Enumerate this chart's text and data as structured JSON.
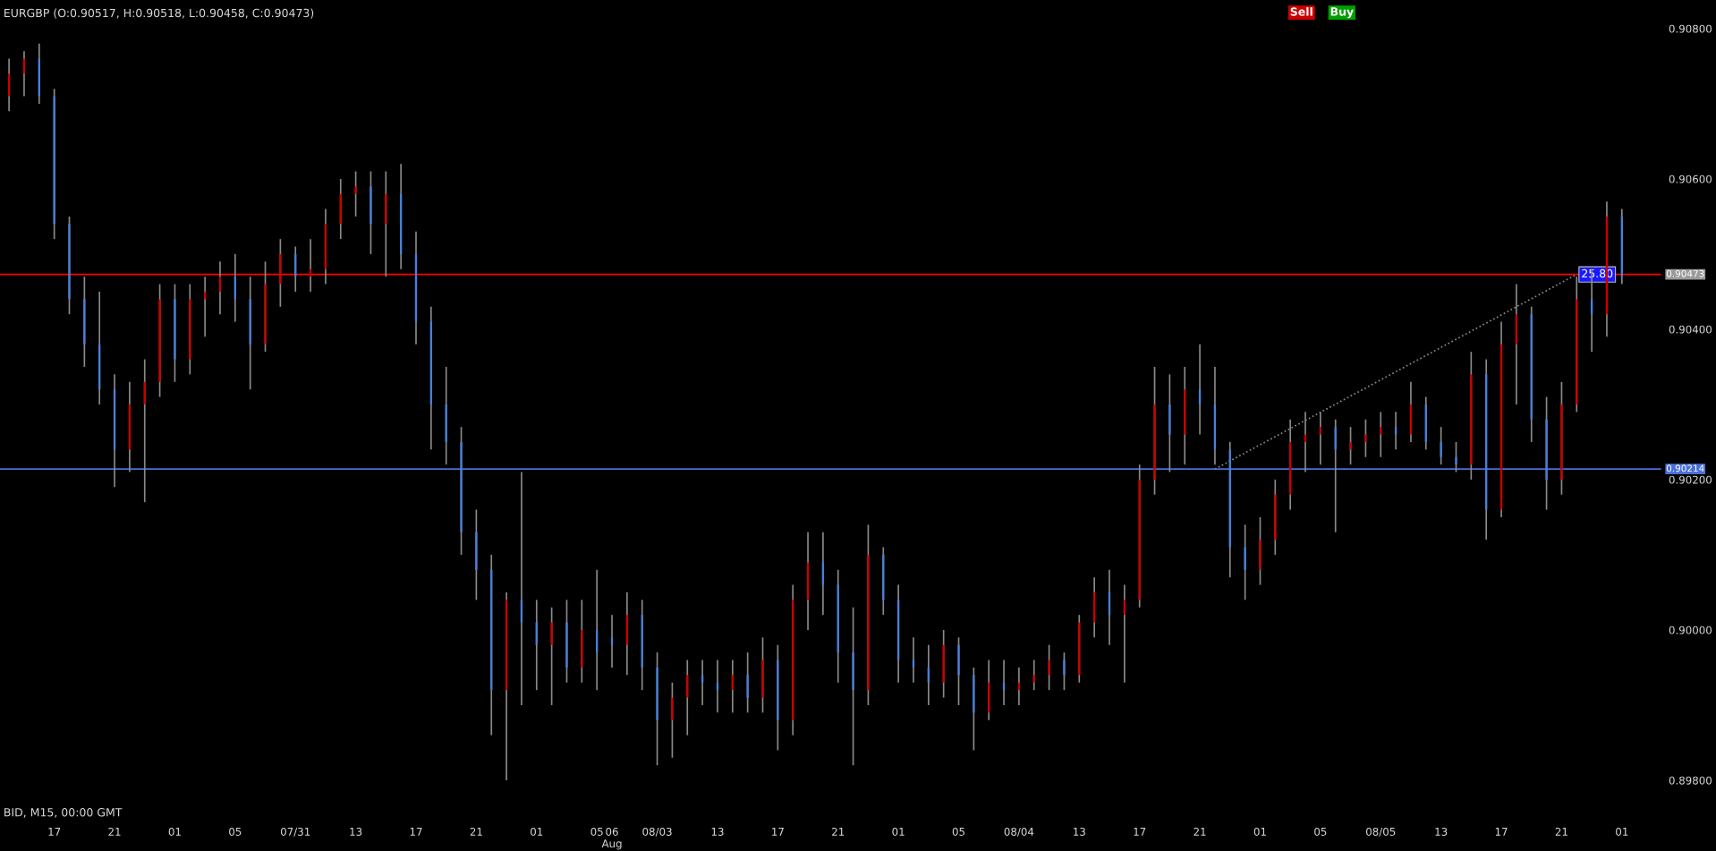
{
  "chart_data": {
    "type": "candlestick",
    "title": "EURGBP (O:0.90517, H:0.90518, L:0.90458, C:0.90473)",
    "categories": [
      null,
      null,
      null,
      "17",
      null,
      null,
      null,
      "21",
      null,
      null,
      null,
      "01",
      null,
      null,
      null,
      "05",
      null,
      null,
      null,
      "07/31",
      null,
      null,
      null,
      "13",
      null,
      null,
      null,
      "17",
      null,
      null,
      null,
      "21",
      null,
      null,
      null,
      "01",
      null,
      null,
      null,
      "05",
      "06\nAug",
      null,
      null,
      "08/03",
      null,
      null,
      null,
      "13",
      null,
      null,
      null,
      "17",
      null,
      null,
      null,
      "21",
      null,
      null,
      null,
      "01",
      null,
      null,
      null,
      "05",
      null,
      null,
      null,
      "08/04",
      null,
      null,
      null,
      "13",
      null,
      null,
      null,
      "17",
      null,
      null,
      null,
      "21",
      null,
      null,
      null,
      "01",
      null,
      null,
      null,
      "05",
      null,
      null,
      null,
      "08/05",
      null,
      null,
      null,
      "13",
      null,
      null,
      null,
      "17",
      null,
      null,
      null,
      "21",
      null,
      null,
      null,
      "01"
    ],
    "ohlc": [
      [
        0.9071,
        0.9076,
        0.9069,
        0.9074
      ],
      [
        0.9074,
        0.9077,
        0.9071,
        0.9076
      ],
      [
        0.9076,
        0.9078,
        0.907,
        0.9071
      ],
      [
        0.9071,
        0.9072,
        0.9052,
        0.9054
      ],
      [
        0.9054,
        0.9055,
        0.9042,
        0.9044
      ],
      [
        0.9044,
        0.9047,
        0.9035,
        0.9038
      ],
      [
        0.9038,
        0.9045,
        0.903,
        0.9032
      ],
      [
        0.9032,
        0.9034,
        0.9019,
        0.9024
      ],
      [
        0.9024,
        0.9033,
        0.9021,
        0.903
      ],
      [
        0.903,
        0.9036,
        0.9017,
        0.9033
      ],
      [
        0.9033,
        0.9046,
        0.9031,
        0.9044
      ],
      [
        0.9044,
        0.9046,
        0.9033,
        0.9036
      ],
      [
        0.9036,
        0.9046,
        0.9034,
        0.9044
      ],
      [
        0.9044,
        0.9047,
        0.9039,
        0.9045
      ],
      [
        0.9045,
        0.9049,
        0.9042,
        0.9047
      ],
      [
        0.9047,
        0.905,
        0.9041,
        0.9044
      ],
      [
        0.9044,
        0.9047,
        0.9032,
        0.9038
      ],
      [
        0.9038,
        0.9049,
        0.9037,
        0.9046
      ],
      [
        0.9046,
        0.9052,
        0.9043,
        0.905
      ],
      [
        0.905,
        0.9051,
        0.9045,
        0.9047
      ],
      [
        0.9047,
        0.9052,
        0.9045,
        0.9048
      ],
      [
        0.9048,
        0.9056,
        0.9046,
        0.9054
      ],
      [
        0.9054,
        0.906,
        0.9052,
        0.9058
      ],
      [
        0.9058,
        0.9061,
        0.9055,
        0.9059
      ],
      [
        0.9059,
        0.9061,
        0.905,
        0.9054
      ],
      [
        0.9054,
        0.9061,
        0.9047,
        0.9058
      ],
      [
        0.9058,
        0.9062,
        0.9048,
        0.905
      ],
      [
        0.905,
        0.9053,
        0.9038,
        0.9041
      ],
      [
        0.9041,
        0.9043,
        0.9024,
        0.903
      ],
      [
        0.903,
        0.9035,
        0.9022,
        0.9025
      ],
      [
        0.9025,
        0.9027,
        0.901,
        0.9013
      ],
      [
        0.9013,
        0.9016,
        0.9004,
        0.9008
      ],
      [
        0.9008,
        0.901,
        0.8986,
        0.8992
      ],
      [
        0.8992,
        0.9005,
        0.898,
        0.9004
      ],
      [
        0.9004,
        0.9021,
        0.899,
        0.9001
      ],
      [
        0.9001,
        0.9004,
        0.8992,
        0.8998
      ],
      [
        0.8998,
        0.9003,
        0.899,
        0.9001
      ],
      [
        0.9001,
        0.9004,
        0.8993,
        0.8995
      ],
      [
        0.8995,
        0.9004,
        0.8993,
        0.9
      ],
      [
        0.9,
        0.9008,
        0.8992,
        0.8997
      ],
      [
        0.8999,
        0.9002,
        0.8995,
        0.8998
      ],
      [
        0.8998,
        0.9005,
        0.8994,
        0.9002
      ],
      [
        0.9002,
        0.9004,
        0.8992,
        0.8995
      ],
      [
        0.8995,
        0.8997,
        0.8982,
        0.8988
      ],
      [
        0.8988,
        0.8993,
        0.8983,
        0.8991
      ],
      [
        0.8991,
        0.8996,
        0.8986,
        0.8994
      ],
      [
        0.8994,
        0.8996,
        0.899,
        0.8993
      ],
      [
        0.8993,
        0.8996,
        0.8989,
        0.8992
      ],
      [
        0.8992,
        0.8996,
        0.8989,
        0.8994
      ],
      [
        0.8994,
        0.8997,
        0.8989,
        0.8991
      ],
      [
        0.8991,
        0.8999,
        0.8989,
        0.8996
      ],
      [
        0.8996,
        0.8998,
        0.8984,
        0.8988
      ],
      [
        0.8988,
        0.9006,
        0.8986,
        0.9004
      ],
      [
        0.9004,
        0.9013,
        0.9,
        0.9009
      ],
      [
        0.9009,
        0.9013,
        0.9002,
        0.9006
      ],
      [
        0.9006,
        0.9008,
        0.8993,
        0.8997
      ],
      [
        0.8997,
        0.9003,
        0.8982,
        0.8992
      ],
      [
        0.8992,
        0.9014,
        0.899,
        0.901
      ],
      [
        0.901,
        0.9011,
        0.9002,
        0.9004
      ],
      [
        0.9004,
        0.9006,
        0.8993,
        0.8996
      ],
      [
        0.8996,
        0.8999,
        0.8993,
        0.8995
      ],
      [
        0.8995,
        0.8998,
        0.899,
        0.8993
      ],
      [
        0.8993,
        0.9,
        0.8991,
        0.8998
      ],
      [
        0.8998,
        0.8999,
        0.899,
        0.8994
      ],
      [
        0.8994,
        0.8995,
        0.8984,
        0.8989
      ],
      [
        0.8989,
        0.8996,
        0.8988,
        0.8993
      ],
      [
        0.8993,
        0.8996,
        0.899,
        0.8992
      ],
      [
        0.8992,
        0.8995,
        0.899,
        0.8993
      ],
      [
        0.8993,
        0.8996,
        0.8992,
        0.8994
      ],
      [
        0.8994,
        0.8998,
        0.8992,
        0.8996
      ],
      [
        0.8996,
        0.8997,
        0.8992,
        0.8994
      ],
      [
        0.8994,
        0.9002,
        0.8993,
        0.9001
      ],
      [
        0.9001,
        0.9007,
        0.8999,
        0.9005
      ],
      [
        0.9005,
        0.9008,
        0.8998,
        0.9002
      ],
      [
        0.9002,
        0.9006,
        0.8993,
        0.9004
      ],
      [
        0.9004,
        0.9022,
        0.9003,
        0.902
      ],
      [
        0.902,
        0.9035,
        0.9018,
        0.903
      ],
      [
        0.903,
        0.9034,
        0.9021,
        0.9026
      ],
      [
        0.9026,
        0.9035,
        0.9022,
        0.9032
      ],
      [
        0.9032,
        0.9038,
        0.9026,
        0.903
      ],
      [
        0.903,
        0.9035,
        0.9022,
        0.9024
      ],
      [
        0.9024,
        0.9025,
        0.9007,
        0.9011
      ],
      [
        0.9011,
        0.9014,
        0.9004,
        0.9008
      ],
      [
        0.9008,
        0.9015,
        0.9006,
        0.9012
      ],
      [
        0.9012,
        0.902,
        0.901,
        0.9018
      ],
      [
        0.9018,
        0.9028,
        0.9016,
        0.9025
      ],
      [
        0.9025,
        0.9029,
        0.9021,
        0.9026
      ],
      [
        0.9026,
        0.9029,
        0.9022,
        0.9027
      ],
      [
        0.9027,
        0.9028,
        0.9013,
        0.9024
      ],
      [
        0.9024,
        0.9027,
        0.9022,
        0.9025
      ],
      [
        0.9025,
        0.9028,
        0.9023,
        0.9026
      ],
      [
        0.9026,
        0.9029,
        0.9023,
        0.9027
      ],
      [
        0.9027,
        0.9029,
        0.9024,
        0.9026
      ],
      [
        0.9026,
        0.9033,
        0.9025,
        0.903
      ],
      [
        0.903,
        0.9031,
        0.9024,
        0.9025
      ],
      [
        0.9025,
        0.9027,
        0.9022,
        0.9023
      ],
      [
        0.9023,
        0.9025,
        0.9021,
        0.9022
      ],
      [
        0.9022,
        0.9037,
        0.902,
        0.9034
      ],
      [
        0.9034,
        0.9036,
        0.9012,
        0.9016
      ],
      [
        0.9016,
        0.9041,
        0.9015,
        0.9038
      ],
      [
        0.9038,
        0.9046,
        0.903,
        0.9042
      ],
      [
        0.9042,
        0.9043,
        0.9025,
        0.9028
      ],
      [
        0.9028,
        0.9031,
        0.9016,
        0.902
      ],
      [
        0.902,
        0.9033,
        0.9018,
        0.903
      ],
      [
        0.903,
        0.9047,
        0.9029,
        0.9044
      ],
      [
        0.9044,
        0.9048,
        0.9037,
        0.9042
      ],
      [
        0.9042,
        0.9057,
        0.9039,
        0.9055
      ],
      [
        0.9055,
        0.9056,
        0.9046,
        0.9047
      ]
    ],
    "colors": [
      "#cc0000",
      "#cc0000",
      "#4a7fd9",
      "#4a7fd9",
      "#4a7fd9",
      "#4a7fd9",
      "#4a7fd9",
      "#4a7fd9",
      "#cc0000",
      "#cc0000",
      "#cc0000",
      "#4a7fd9",
      "#cc0000",
      "#cc0000",
      "#cc0000",
      "#4a7fd9",
      "#4a7fd9",
      "#cc0000",
      "#cc0000",
      "#4a7fd9",
      "#cc0000",
      "#cc0000",
      "#cc0000",
      "#cc0000",
      "#4a7fd9",
      "#cc0000",
      "#4a7fd9",
      "#4a7fd9",
      "#4a7fd9",
      "#4a7fd9",
      "#4a7fd9",
      "#4a7fd9",
      "#4a7fd9",
      "#cc0000",
      "#4a7fd9",
      "#4a7fd9",
      "#cc0000",
      "#4a7fd9",
      "#cc0000",
      "#4a7fd9",
      "#4a7fd9",
      "#cc0000",
      "#4a7fd9",
      "#4a7fd9",
      "#cc0000",
      "#cc0000",
      "#4a7fd9",
      "#4a7fd9",
      "#cc0000",
      "#4a7fd9",
      "#cc0000",
      "#4a7fd9",
      "#cc0000",
      "#cc0000",
      "#4a7fd9",
      "#4a7fd9",
      "#4a7fd9",
      "#cc0000",
      "#4a7fd9",
      "#4a7fd9",
      "#4a7fd9",
      "#4a7fd9",
      "#cc0000",
      "#4a7fd9",
      "#4a7fd9",
      "#cc0000",
      "#4a7fd9",
      "#cc0000",
      "#cc0000",
      "#cc0000",
      "#4a7fd9",
      "#cc0000",
      "#cc0000",
      "#4a7fd9",
      "#cc0000",
      "#cc0000",
      "#cc0000",
      "#4a7fd9",
      "#cc0000",
      "#4a7fd9",
      "#4a7fd9",
      "#4a7fd9",
      "#4a7fd9",
      "#cc0000",
      "#cc0000",
      "#cc0000",
      "#cc0000",
      "#cc0000",
      "#4a7fd9",
      "#cc0000",
      "#cc0000",
      "#cc0000",
      "#4a7fd9",
      "#cc0000",
      "#4a7fd9",
      "#4a7fd9",
      "#4a7fd9",
      "#cc0000",
      "#4a7fd9",
      "#cc0000",
      "#cc0000",
      "#4a7fd9",
      "#4a7fd9",
      "#cc0000",
      "#cc0000",
      "#4a7fd9",
      "#cc0000",
      "#4a7fd9"
    ],
    "series": [
      {
        "type": "line",
        "color": "#8c8c8c",
        "line_style": "dotted",
        "values": [
          null,
          null,
          null,
          null,
          null,
          null,
          null,
          null,
          null,
          null,
          null,
          null,
          null,
          null,
          null,
          null,
          null,
          null,
          null,
          null,
          null,
          null,
          null,
          null,
          null,
          null,
          null,
          null,
          null,
          null,
          null,
          null,
          null,
          null,
          null,
          null,
          null,
          null,
          null,
          null,
          null,
          null,
          null,
          null,
          null,
          null,
          null,
          null,
          null,
          null,
          null,
          null,
          null,
          null,
          null,
          null,
          null,
          null,
          null,
          null,
          null,
          null,
          null,
          null,
          null,
          null,
          null,
          null,
          null,
          null,
          null,
          null,
          null,
          null,
          null,
          null,
          null,
          null,
          null,
          null,
          0.90214,
          null,
          null,
          null,
          null,
          null,
          null,
          null,
          null,
          null,
          null,
          null,
          null,
          null,
          null,
          null,
          null,
          null,
          null,
          null,
          null,
          null,
          null,
          null,
          0.90473,
          null,
          null,
          null
        ]
      }
    ],
    "ylim": [
      0.898,
      0.908
    ],
    "yticks": [
      {
        "value": 0.898,
        "label": "0.89800"
      },
      {
        "value": 0.9,
        "label": "0.90000"
      },
      {
        "value": 0.902,
        "label": "0.90200"
      },
      {
        "value": 0.904,
        "label": "0.90400"
      },
      {
        "value": 0.906,
        "label": "0.90600"
      },
      {
        "value": 0.908,
        "label": "0.90800"
      }
    ],
    "ref_lines": [
      {
        "axis": "y",
        "value": 0.90473,
        "label": "0.90473",
        "color": "#ff0000"
      },
      {
        "axis": "y",
        "value": 0.90214,
        "label": "0.90214",
        "color": "#4a6fd8"
      }
    ],
    "annotations": [
      "BID, M15, 00:00 GMT",
      "Sell",
      "Buy",
      {
        "text": "25.80",
        "y": 0.90473
      }
    ],
    "grid": false,
    "legend": false
  }
}
